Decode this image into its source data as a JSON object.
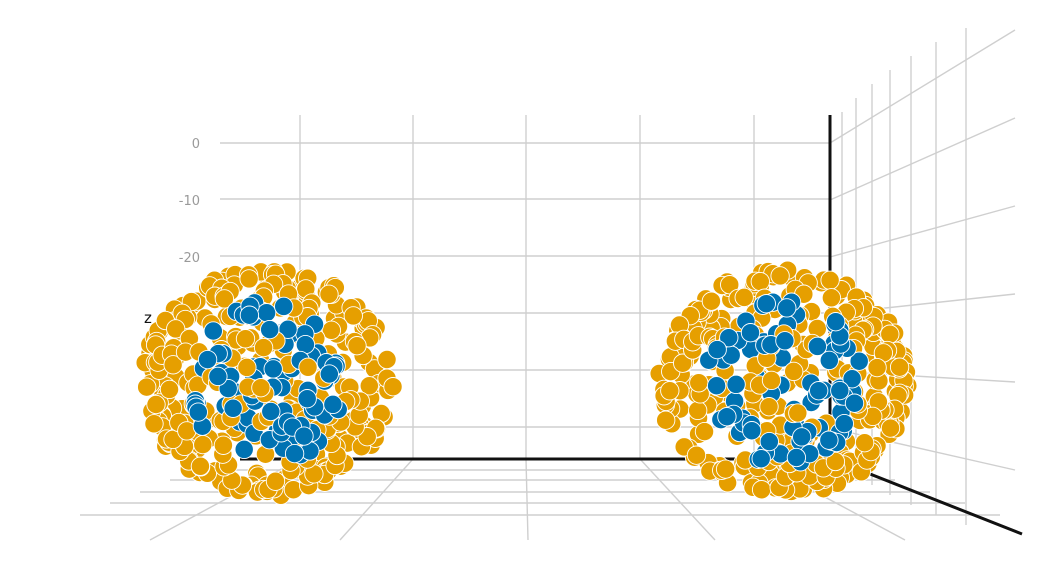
{
  "chart_data": {
    "type": "scatter3d",
    "title": "",
    "axes": {
      "z": {
        "label": "z",
        "ticks": [
          "0",
          "-10",
          "-20"
        ]
      },
      "x": {
        "label": "",
        "ticks": []
      },
      "y": {
        "label": "",
        "ticks": []
      }
    },
    "grid": true,
    "legend": "none",
    "series": [
      {
        "name": "",
        "color": "#E69F00",
        "shape": "sphere-shell",
        "center": [
          -41,
          -8,
          -42
        ],
        "radius": 20,
        "points": 340
      },
      {
        "name": "",
        "color": "#0072B2",
        "shape": "cluster",
        "center": [
          -41,
          -8,
          -42
        ],
        "radius": 12,
        "points": 90
      },
      {
        "name": "",
        "color": "#E69F00",
        "shape": "sphere-shell",
        "center": [
          41,
          -8,
          -42
        ],
        "radius": 20,
        "points": 340
      },
      {
        "name": "",
        "color": "#0072B2",
        "shape": "cluster",
        "center": [
          41,
          -8,
          -42
        ],
        "radius": 12,
        "points": 90
      }
    ]
  }
}
